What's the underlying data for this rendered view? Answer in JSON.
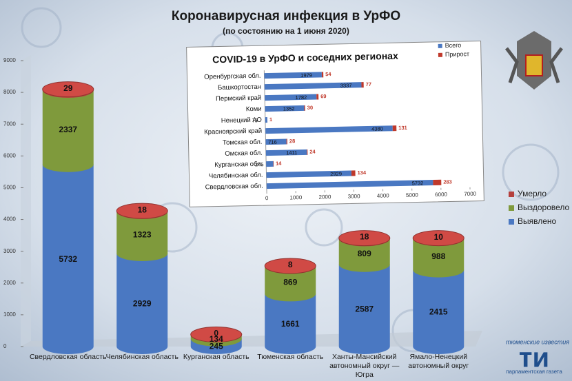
{
  "chart_data": [
    {
      "type": "cylinder",
      "title": "Коронавирусная инфекция в УрФО",
      "subtitle": "(по состоянию на 1 июня 2020)",
      "categories": [
        "Свердловская область",
        "Челябинская область",
        "Курганская область",
        "Тюменская область",
        "Ханты-Мансийский автономный округ — Югра",
        "Ямало-Ненецкий автономный округ"
      ],
      "series": [
        {
          "name": "Выявлено",
          "color": "#4a78c2",
          "values": [
            5732,
            2929,
            245,
            1661,
            2587,
            2415
          ]
        },
        {
          "name": "Выздоровело",
          "color": "#7f9a3c",
          "values": [
            2337,
            1323,
            134,
            869,
            809,
            988
          ]
        },
        {
          "name": "Умерло",
          "color": "#b5403c",
          "values": [
            29,
            18,
            0,
            8,
            18,
            10
          ]
        }
      ],
      "ylim": [
        0,
        9000
      ],
      "yticks": [
        0,
        1000,
        2000,
        3000,
        4000,
        5000,
        6000,
        7000,
        8000,
        9000
      ],
      "stacked": true,
      "legend": "right"
    },
    {
      "type": "hbar",
      "title": "COVID-19 в УрФО и соседних регионах",
      "categories": [
        "Оренбургская обл.",
        "Башкортостан",
        "Пермский край",
        "Коми",
        "Ненецкий АО",
        "Красноярский край",
        "Томская обл.",
        "Омская обл.",
        "Курганская обл.",
        "Челябинская обл.",
        "Свердловская обл."
      ],
      "series": [
        {
          "name": "Всего",
          "color": "#4a78c2",
          "values": [
            1979,
            3337,
            1782,
            1352,
            73,
            4380,
            716,
            1411,
            245,
            2929,
            5732
          ]
        },
        {
          "name": "Прирост",
          "color": "#c0392b",
          "values": [
            54,
            77,
            69,
            30,
            1,
            131,
            28,
            24,
            14,
            134,
            283
          ]
        }
      ],
      "xlim": [
        0,
        7000
      ],
      "xticks": [
        0,
        1000,
        2000,
        3000,
        4000,
        5000,
        6000,
        7000
      ],
      "stacked": true,
      "legend": "upper right"
    }
  ],
  "logo": {
    "top": "тюменские известия",
    "mark": "ти",
    "bottom": "парламентская газета"
  }
}
